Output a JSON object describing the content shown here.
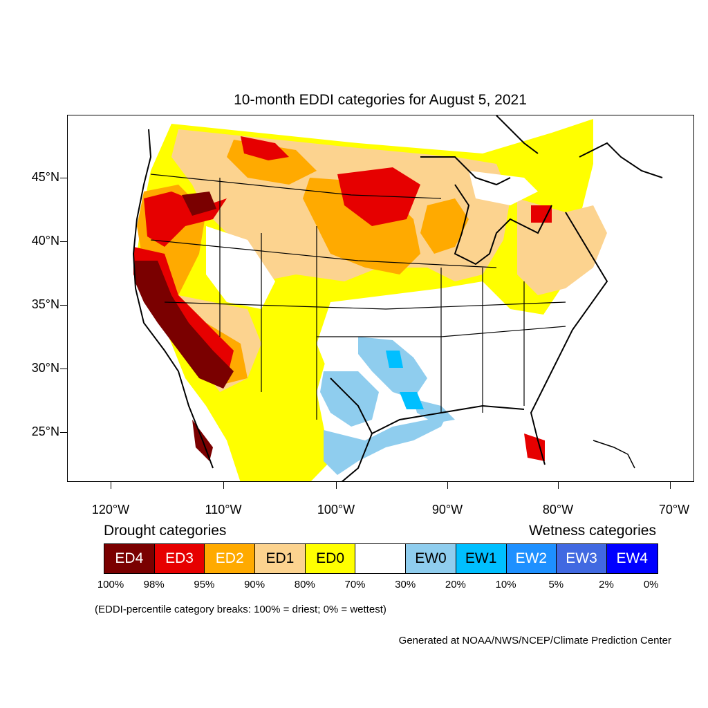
{
  "title": "10-month EDDI categories for August 5, 2021",
  "lat_labels": [
    "45°N",
    "40°N",
    "35°N",
    "30°N",
    "25°N"
  ],
  "lon_labels": [
    "120°W",
    "110°W",
    "100°W",
    "90°W",
    "80°W",
    "70°W"
  ],
  "legend": {
    "drought_title": "Drought categories",
    "wetness_title": "Wetness categories",
    "categories": [
      {
        "label": "ED4",
        "color": "#7a0000",
        "text_color": "#ffffff"
      },
      {
        "label": "ED3",
        "color": "#e60000",
        "text_color": "#ffffff"
      },
      {
        "label": "ED2",
        "color": "#ffaa00",
        "text_color": "#ffffff"
      },
      {
        "label": "ED1",
        "color": "#fcd38f",
        "text_color": "#000000"
      },
      {
        "label": "ED0",
        "color": "#ffff00",
        "text_color": "#000000"
      },
      {
        "label": "",
        "color": "#ffffff",
        "text_color": "#000000"
      },
      {
        "label": "EW0",
        "color": "#8fcdee",
        "text_color": "#000000"
      },
      {
        "label": "EW1",
        "color": "#00bfff",
        "text_color": "#000000"
      },
      {
        "label": "EW2",
        "color": "#1e90ff",
        "text_color": "#ffffff"
      },
      {
        "label": "EW3",
        "color": "#4169e1",
        "text_color": "#ffffff"
      },
      {
        "label": "EW4",
        "color": "#0000ff",
        "text_color": "#ffffff"
      }
    ],
    "percentiles": [
      "100%",
      "98%",
      "95%",
      "90%",
      "80%",
      "70%",
      "30%",
      "20%",
      "10%",
      "5%",
      "2%",
      "0%"
    ]
  },
  "note": "(EDDI-percentile category breaks: 100% = driest; 0% = wettest)",
  "credit": "Generated at NOAA/NWS/NCEP/Climate Prediction Center"
}
